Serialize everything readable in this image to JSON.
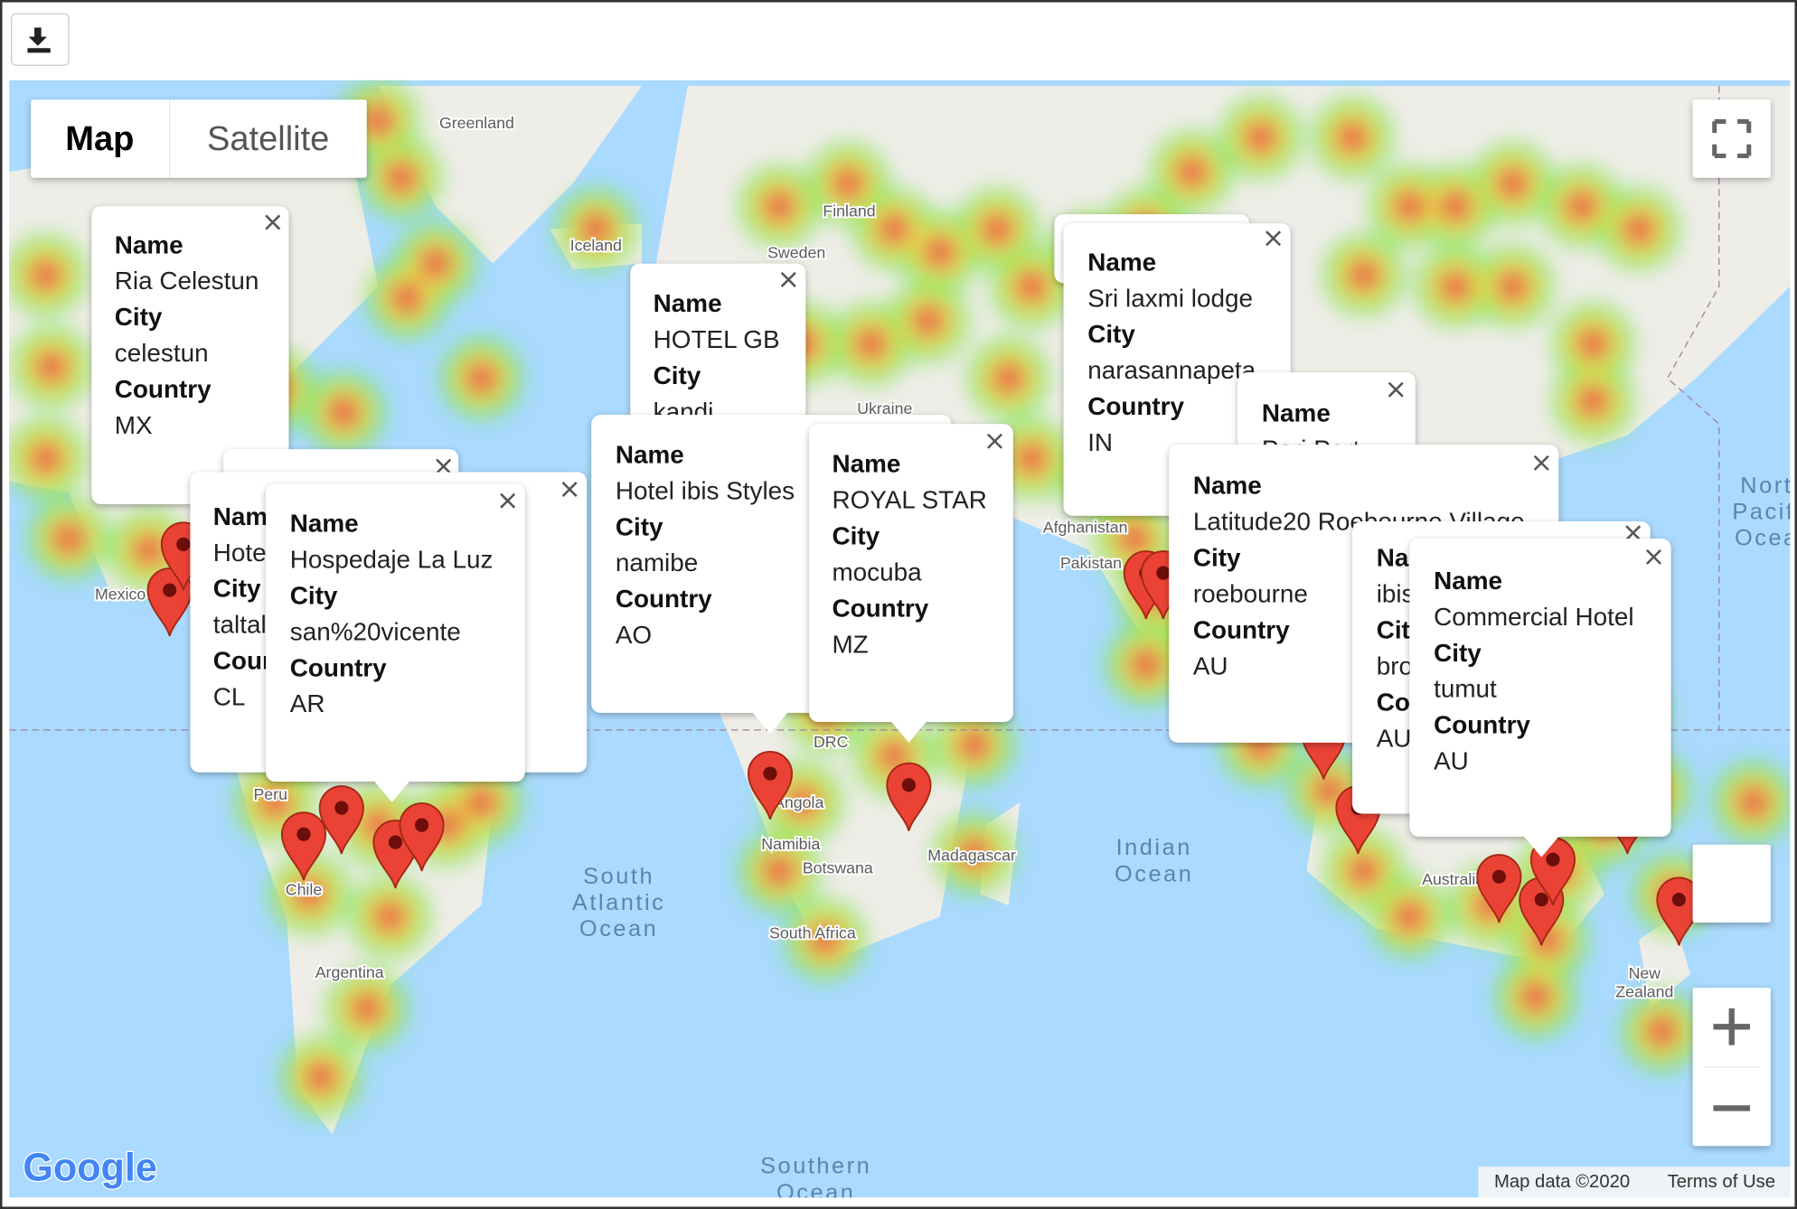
{
  "map_type_control": [
    "Map",
    "Satellite"
  ],
  "place_labels": [
    {
      "lines": [
        "Greenland"
      ]
    },
    {
      "lines": [
        "Iceland"
      ]
    },
    {
      "lines": [
        "Finland"
      ]
    },
    {
      "lines": [
        "Sweden"
      ]
    },
    {
      "lines": [
        "Ukraine"
      ]
    },
    {
      "lines": [
        "Afghanistan"
      ]
    },
    {
      "lines": [
        "Pakistan"
      ]
    },
    {
      "lines": [
        "Mexico"
      ]
    },
    {
      "lines": [
        "Peru"
      ]
    },
    {
      "lines": [
        "Chile"
      ]
    },
    {
      "lines": [
        "Argentina"
      ]
    },
    {
      "lines": [
        "DRC"
      ]
    },
    {
      "lines": [
        "Angola"
      ]
    },
    {
      "lines": [
        "Namibia"
      ]
    },
    {
      "lines": [
        "Botswana"
      ]
    },
    {
      "lines": [
        "South Africa"
      ]
    },
    {
      "lines": [
        "Madagascar"
      ]
    },
    {
      "lines": [
        "Australia"
      ]
    },
    {
      "lines": [
        "New",
        "Zealand"
      ]
    },
    {
      "lines": [
        "Indian",
        "Ocean"
      ]
    },
    {
      "lines": [
        "South",
        "Atlantic",
        "Ocean"
      ]
    },
    {
      "lines": [
        "Southern",
        "Ocean"
      ]
    },
    {
      "lines": [
        "North",
        "Pacific",
        "Ocean"
      ]
    }
  ],
  "info_windows": [
    {
      "fields": [
        {
          "label": "Name",
          "value": "Ria Celestun"
        },
        {
          "label": "City",
          "value": "celestun"
        },
        {
          "label": "Country",
          "value": "MX"
        }
      ]
    },
    {
      "fields": [
        {
          "label": "Name",
          "value": "Hotel"
        },
        {
          "label": "City",
          "value": "taltal"
        },
        {
          "label": "Country",
          "value": "CL"
        }
      ]
    },
    {
      "fields": [
        {
          "label": "Name",
          "value": "Hospedaje La Luz"
        },
        {
          "label": "City",
          "value": "san%20vicente"
        },
        {
          "label": "Country",
          "value": "AR"
        }
      ]
    },
    {
      "fields": [
        {
          "label": "Name",
          "value": "HOTEL GB"
        },
        {
          "label": "City",
          "value": "kandi"
        }
      ]
    },
    {
      "fields": [
        {
          "label": "Name",
          "value": "Hotel ibis Styles"
        },
        {
          "label": "City",
          "value": "namibe"
        },
        {
          "label": "Country",
          "value": "AO"
        }
      ]
    },
    {
      "fields": [
        {
          "label": "Name",
          "value": "ROYAL STAR"
        },
        {
          "label": "City",
          "value": "mocuba"
        },
        {
          "label": "Country",
          "value": "MZ"
        }
      ]
    },
    {
      "fields": [
        {
          "label": "Name",
          "value": "Sri laxmi lodge"
        },
        {
          "label": "City",
          "value": "narasannapeta"
        },
        {
          "label": "Country",
          "value": "IN"
        }
      ]
    },
    {
      "fields": [
        {
          "label": "Name",
          "value": "Pari Port"
        }
      ]
    },
    {
      "fields": [
        {
          "label": "Name",
          "value": "Latitude20 Roebourne Village"
        },
        {
          "label": "City",
          "value": "roebourne"
        },
        {
          "label": "Country",
          "value": "AU"
        }
      ]
    },
    {
      "fields": [
        {
          "label": "Name",
          "value": "ibis"
        },
        {
          "label": "City",
          "value": "broome"
        },
        {
          "label": "Country",
          "value": "AU"
        }
      ]
    },
    {
      "fields": [
        {
          "label": "Name",
          "value": "Commercial Hotel"
        },
        {
          "label": "City",
          "value": "tumut"
        },
        {
          "label": "Country",
          "value": "AU"
        }
      ]
    }
  ],
  "logo": "Google",
  "attribution": [
    "Map data ©2020",
    "Terms of Use"
  ]
}
